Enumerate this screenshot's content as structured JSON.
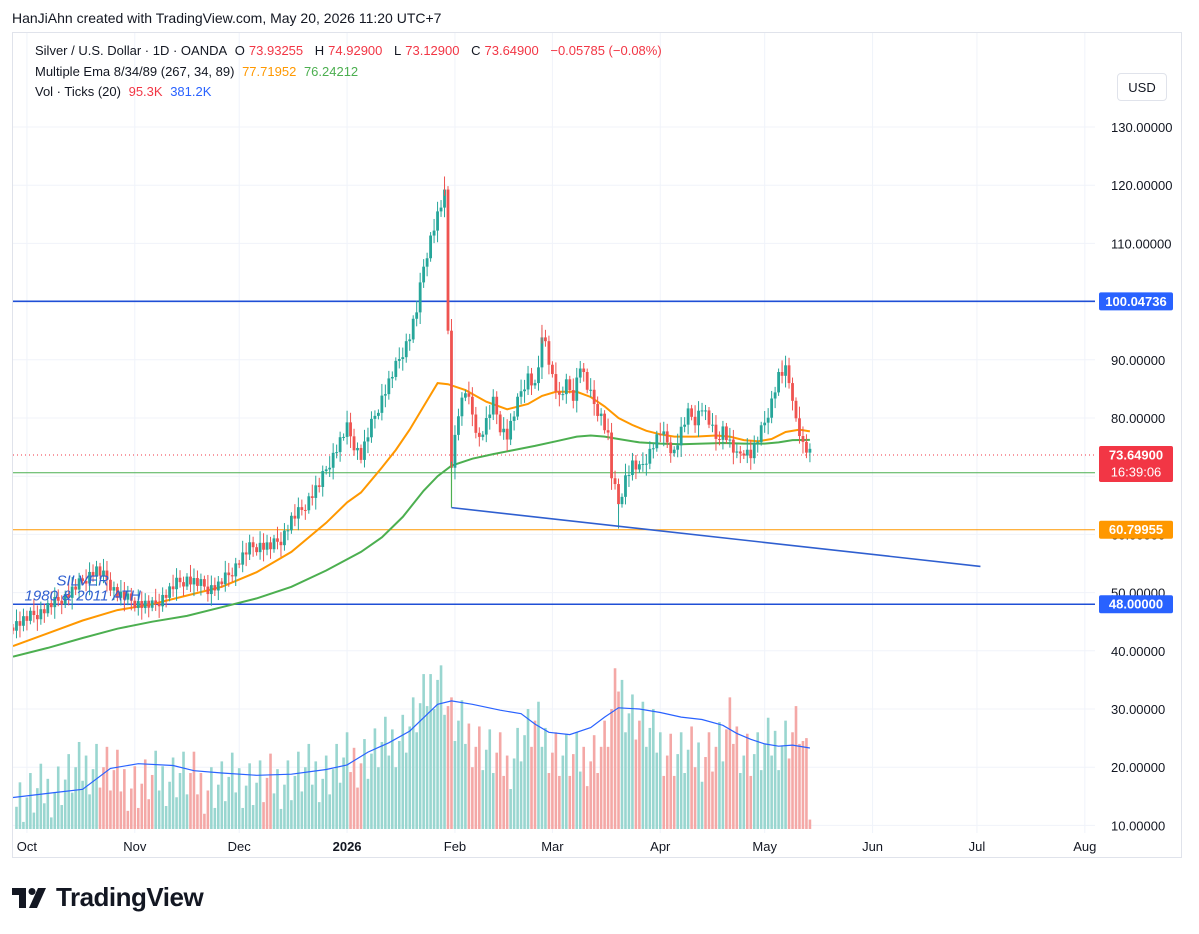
{
  "caption": "HanJiAhn created with TradingView.com, May 20, 2026 11:20 UTC+7",
  "legend": {
    "symbol": "Silver / U.S. Dollar · 1D · OANDA",
    "o_label": "O",
    "o_value": "73.93255",
    "h_label": "H",
    "h_value": "74.92900",
    "l_label": "L",
    "l_value": "73.12900",
    "c_label": "C",
    "c_value": "73.64900",
    "change": "−0.05785 (−0.08%)",
    "ema_label": "Multiple Ema 8/34/89 (267, 34, 89)",
    "ema_34_value": "77.71952",
    "ema_89_value": "76.24212",
    "vol_label": "Vol · Ticks (20)",
    "vol_value": "95.3K",
    "vol_ma_value": "381.2K"
  },
  "currency": "USD",
  "brand": "TradingView",
  "colors": {
    "up": "#26a69a",
    "down": "#ef5350",
    "vol_up": "#99d6d0",
    "vol_down": "#f4a8a6",
    "ema34": "#ff9800",
    "ema89": "#4caf50",
    "vol_ma": "#2962ff",
    "drawn_line": "#2f5fd0",
    "hline_blue": "#1f4fd6",
    "hline_green": "#4caf50",
    "hline_orange": "#ff9800",
    "badge_price": "#f23645",
    "badge_green": "#4caf50",
    "badge_orange": "#ff9800",
    "badge_blue": "#2962ff"
  },
  "chart_data": {
    "type": "candlestick",
    "symbol": "XAGUSD",
    "timeframe": "1D",
    "y_axis_ticks": [
      "130.00000",
      "120.00000",
      "110.00000",
      "100.00000",
      "90.00000",
      "80.00000",
      "70.00000",
      "60.00000",
      "50.00000",
      "40.00000",
      "30.00000",
      "20.00000",
      "10.00000"
    ],
    "y_tick_values": [
      130,
      120,
      110,
      100,
      90,
      80,
      70,
      60,
      50,
      40,
      30,
      20,
      10
    ],
    "ylim": [
      8,
      138
    ],
    "x_axis_labels": [
      "Oct",
      "Nov",
      "Dec",
      "2026",
      "Feb",
      "Mar",
      "Apr",
      "May",
      "Jun",
      "Jul",
      "Aug"
    ],
    "x_label_days": [
      4,
      35,
      65,
      96,
      127,
      155,
      186,
      216,
      247,
      277,
      308
    ],
    "x_day_range": [
      0,
      320
    ],
    "current_price": "73.64900",
    "countdown": "16:39:06",
    "horizontal_lines": [
      {
        "value": 100.04736,
        "label": "100.04736",
        "style": "blue"
      },
      {
        "value": 70.5858,
        "label": "70.58580",
        "style": "green"
      },
      {
        "value": 60.79955,
        "label": "60.79955",
        "style": "orange"
      },
      {
        "value": 48.0,
        "label": "48.00000",
        "style": "blue"
      }
    ],
    "trendline": {
      "from": {
        "day": 126,
        "price": 64.6
      },
      "to": {
        "day": 278,
        "price": 54.5
      }
    },
    "drop_line": {
      "day": 126,
      "from": 72.3,
      "to": 64.6
    },
    "annotation": {
      "line1": "SILVER",
      "line2": "1980 & 2011 ATH",
      "day": 12,
      "price": 51.2
    },
    "price_path": [
      [
        0,
        44.5
      ],
      [
        4,
        45.5
      ],
      [
        8,
        46.8
      ],
      [
        12,
        48.2
      ],
      [
        16,
        49.8
      ],
      [
        19,
        51.4
      ],
      [
        22,
        53.2
      ],
      [
        24,
        53.8
      ],
      [
        27,
        52.2
      ],
      [
        30,
        49.8
      ],
      [
        33,
        48.8
      ],
      [
        36,
        48.2
      ],
      [
        40,
        47.6
      ],
      [
        44,
        49.8
      ],
      [
        47,
        51.5
      ],
      [
        50,
        52.4
      ],
      [
        53,
        51.5
      ],
      [
        56,
        50.8
      ],
      [
        59,
        51.2
      ],
      [
        62,
        53.0
      ],
      [
        65,
        55.5
      ],
      [
        68,
        57.6
      ],
      [
        71,
        58.2
      ],
      [
        74,
        57.8
      ],
      [
        77,
        59.2
      ],
      [
        80,
        62.5
      ],
      [
        83,
        64.2
      ],
      [
        85,
        66.2
      ],
      [
        88,
        68.5
      ],
      [
        91,
        72.5
      ],
      [
        94,
        76.0
      ],
      [
        96,
        78.2
      ],
      [
        98,
        75.5
      ],
      [
        100,
        73.5
      ],
      [
        103,
        78.8
      ],
      [
        106,
        83.5
      ],
      [
        109,
        87.4
      ],
      [
        112,
        91.5
      ],
      [
        114,
        94.2
      ],
      [
        116,
        98.5
      ],
      [
        118,
        106.0
      ],
      [
        120,
        111.0
      ],
      [
        122,
        114.8
      ],
      [
        124,
        118.2
      ],
      [
        125,
        95.0
      ],
      [
        126,
        72.5
      ],
      [
        128,
        81.0
      ],
      [
        130,
        84.6
      ],
      [
        132,
        80.6
      ],
      [
        134,
        76.4
      ],
      [
        136,
        79.3
      ],
      [
        138,
        82.6
      ],
      [
        140,
        78.6
      ],
      [
        142,
        77.0
      ],
      [
        144,
        80.6
      ],
      [
        146,
        84.6
      ],
      [
        148,
        87.3
      ],
      [
        150,
        85.3
      ],
      [
        152,
        92.8
      ],
      [
        153,
        93.2
      ],
      [
        155,
        87.2
      ],
      [
        157,
        83.3
      ],
      [
        159,
        85.6
      ],
      [
        161,
        84.0
      ],
      [
        163,
        89.2
      ],
      [
        165,
        85.2
      ],
      [
        167,
        82.4
      ],
      [
        169,
        80.4
      ],
      [
        171,
        76.8
      ],
      [
        172,
        70.0
      ],
      [
        174,
        65.2
      ],
      [
        176,
        69.8
      ],
      [
        178,
        72.0
      ],
      [
        180,
        71.0
      ],
      [
        182,
        73.2
      ],
      [
        184,
        75.5
      ],
      [
        186,
        77.5
      ],
      [
        188,
        75.8
      ],
      [
        190,
        74.2
      ],
      [
        192,
        77.8
      ],
      [
        194,
        80.6
      ],
      [
        196,
        79.8
      ],
      [
        198,
        82.0
      ],
      [
        200,
        79.2
      ],
      [
        202,
        76.4
      ],
      [
        204,
        78.2
      ],
      [
        206,
        75.6
      ],
      [
        208,
        73.2
      ],
      [
        210,
        74.6
      ],
      [
        212,
        73.8
      ],
      [
        214,
        76.2
      ],
      [
        216,
        79.2
      ],
      [
        218,
        83.0
      ],
      [
        220,
        87.2
      ],
      [
        222,
        88.0
      ],
      [
        224,
        84.0
      ],
      [
        225,
        79.6
      ],
      [
        226,
        77.6
      ],
      [
        227,
        75.2
      ],
      [
        228,
        74.4
      ],
      [
        229,
        73.65
      ]
    ],
    "ema34_path": [
      [
        0,
        40.8
      ],
      [
        10,
        43.0
      ],
      [
        20,
        45.2
      ],
      [
        30,
        47.0
      ],
      [
        40,
        48.0
      ],
      [
        50,
        49.5
      ],
      [
        60,
        51.0
      ],
      [
        70,
        53.5
      ],
      [
        80,
        57.0
      ],
      [
        90,
        62.0
      ],
      [
        96,
        65.5
      ],
      [
        100,
        67.2
      ],
      [
        106,
        71.5
      ],
      [
        110,
        74.5
      ],
      [
        114,
        78.0
      ],
      [
        118,
        82.0
      ],
      [
        122,
        86.0
      ],
      [
        125,
        85.8
      ],
      [
        130,
        84.8
      ],
      [
        136,
        82.8
      ],
      [
        142,
        81.5
      ],
      [
        148,
        82.4
      ],
      [
        152,
        83.8
      ],
      [
        156,
        84.5
      ],
      [
        162,
        84.5
      ],
      [
        166,
        83.6
      ],
      [
        170,
        82.0
      ],
      [
        174,
        80.0
      ],
      [
        178,
        78.8
      ],
      [
        182,
        77.8
      ],
      [
        186,
        77.2
      ],
      [
        190,
        76.8
      ],
      [
        196,
        76.8
      ],
      [
        202,
        77.0
      ],
      [
        206,
        76.8
      ],
      [
        210,
        76.2
      ],
      [
        214,
        76.0
      ],
      [
        218,
        76.4
      ],
      [
        222,
        77.6
      ],
      [
        226,
        78.0
      ],
      [
        229,
        77.7
      ]
    ],
    "ema89_path": [
      [
        0,
        39.0
      ],
      [
        10,
        40.5
      ],
      [
        20,
        42.2
      ],
      [
        30,
        43.8
      ],
      [
        40,
        45.0
      ],
      [
        50,
        46.0
      ],
      [
        60,
        47.5
      ],
      [
        70,
        49.0
      ],
      [
        80,
        51.0
      ],
      [
        90,
        53.8
      ],
      [
        100,
        57.0
      ],
      [
        106,
        59.5
      ],
      [
        112,
        63.0
      ],
      [
        118,
        67.5
      ],
      [
        122,
        70.0
      ],
      [
        126,
        71.8
      ],
      [
        132,
        73.0
      ],
      [
        138,
        73.8
      ],
      [
        144,
        74.5
      ],
      [
        150,
        75.2
      ],
      [
        156,
        76.0
      ],
      [
        162,
        76.8
      ],
      [
        166,
        77.0
      ],
      [
        170,
        76.8
      ],
      [
        174,
        76.4
      ],
      [
        180,
        75.8
      ],
      [
        186,
        75.6
      ],
      [
        192,
        75.5
      ],
      [
        198,
        75.6
      ],
      [
        204,
        75.7
      ],
      [
        210,
        75.6
      ],
      [
        216,
        75.6
      ],
      [
        220,
        75.8
      ],
      [
        224,
        76.2
      ],
      [
        229,
        76.24
      ]
    ],
    "volume_path": [
      [
        0,
        14
      ],
      [
        10,
        16
      ],
      [
        18,
        19
      ],
      [
        24,
        21
      ],
      [
        30,
        18
      ],
      [
        36,
        17
      ],
      [
        42,
        18
      ],
      [
        48,
        19
      ],
      [
        54,
        17
      ],
      [
        60,
        17
      ],
      [
        66,
        18
      ],
      [
        72,
        17
      ],
      [
        78,
        18
      ],
      [
        84,
        19
      ],
      [
        90,
        19
      ],
      [
        96,
        21
      ],
      [
        102,
        22
      ],
      [
        108,
        24
      ],
      [
        114,
        27
      ],
      [
        118,
        31
      ],
      [
        120,
        34
      ],
      [
        122,
        36
      ],
      [
        124,
        33
      ],
      [
        126,
        28
      ],
      [
        130,
        26
      ],
      [
        136,
        23
      ],
      [
        142,
        20
      ],
      [
        146,
        25
      ],
      [
        150,
        27
      ],
      [
        154,
        24
      ],
      [
        158,
        22
      ],
      [
        162,
        21
      ],
      [
        166,
        22
      ],
      [
        170,
        24
      ],
      [
        172,
        29
      ],
      [
        174,
        35
      ],
      [
        176,
        31
      ],
      [
        180,
        28
      ],
      [
        184,
        25
      ],
      [
        188,
        23
      ],
      [
        192,
        22
      ],
      [
        196,
        22
      ],
      [
        200,
        23
      ],
      [
        204,
        24
      ],
      [
        206,
        27
      ],
      [
        210,
        23
      ],
      [
        214,
        22
      ],
      [
        218,
        24
      ],
      [
        222,
        25
      ],
      [
        226,
        27
      ],
      [
        228,
        20
      ],
      [
        229,
        13
      ]
    ],
    "volume_ma_path": [
      [
        0,
        14.8
      ],
      [
        10,
        15.5
      ],
      [
        20,
        16.2
      ],
      [
        28,
        19.8
      ],
      [
        36,
        20.6
      ],
      [
        46,
        20.3
      ],
      [
        52,
        19.4
      ],
      [
        60,
        19.0
      ],
      [
        70,
        18.6
      ],
      [
        80,
        18.8
      ],
      [
        90,
        19.6
      ],
      [
        96,
        20.4
      ],
      [
        102,
        22.6
      ],
      [
        108,
        24.2
      ],
      [
        114,
        26.2
      ],
      [
        118,
        28.5
      ],
      [
        122,
        30.8
      ],
      [
        126,
        31.4
      ],
      [
        132,
        30.8
      ],
      [
        140,
        29.8
      ],
      [
        146,
        29.2
      ],
      [
        150,
        27.4
      ],
      [
        154,
        26.0
      ],
      [
        160,
        25.6
      ],
      [
        166,
        26.8
      ],
      [
        170,
        28.6
      ],
      [
        174,
        30.2
      ],
      [
        180,
        30.0
      ],
      [
        186,
        29.4
      ],
      [
        192,
        28.6
      ],
      [
        198,
        28.2
      ],
      [
        204,
        27.2
      ],
      [
        208,
        25.8
      ],
      [
        212,
        24.8
      ],
      [
        216,
        24.0
      ],
      [
        220,
        23.6
      ],
      [
        224,
        23.8
      ],
      [
        229,
        23.3
      ]
    ]
  }
}
